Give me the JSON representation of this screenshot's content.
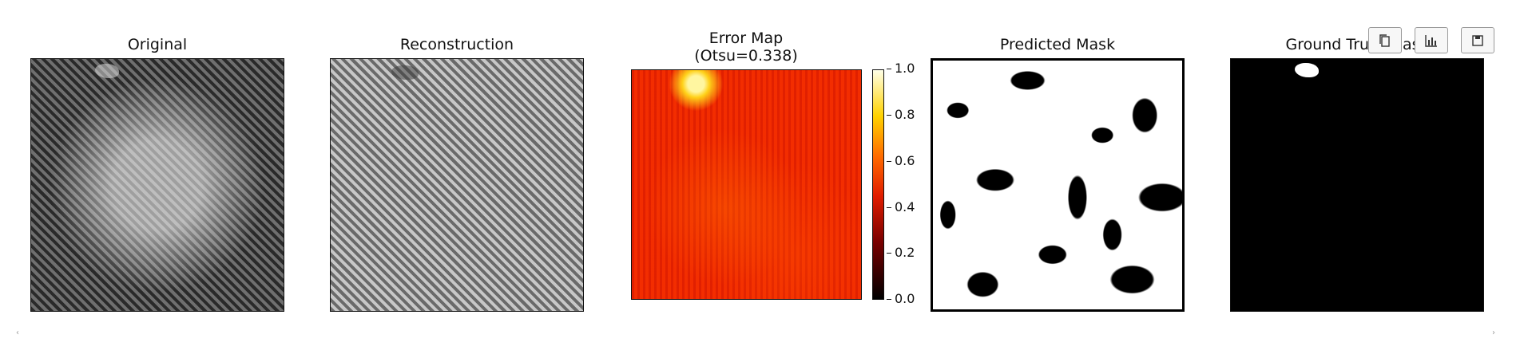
{
  "panels": [
    {
      "title": "Original"
    },
    {
      "title": "Reconstruction"
    },
    {
      "title": "Error Map\n(Otsu=0.338)"
    },
    {
      "title": "Predicted Mask"
    },
    {
      "title": "Ground Truth Mask"
    }
  ],
  "colorbar": {
    "ticks": [
      "1.0",
      "0.8",
      "0.6",
      "0.4",
      "0.2",
      "0.0"
    ],
    "range": [
      0.0,
      1.0
    ],
    "colormap": "hot"
  },
  "toolbar": {
    "copy_icon": "copy-icon",
    "chart_icon": "bar-chart-icon",
    "save_icon": "save-icon"
  },
  "scroll": {
    "left": "‹",
    "right": "›"
  },
  "colors": {
    "heat_base": "#f02a00",
    "mask_fg": "#ffffff",
    "mask_bg": "#000000"
  }
}
